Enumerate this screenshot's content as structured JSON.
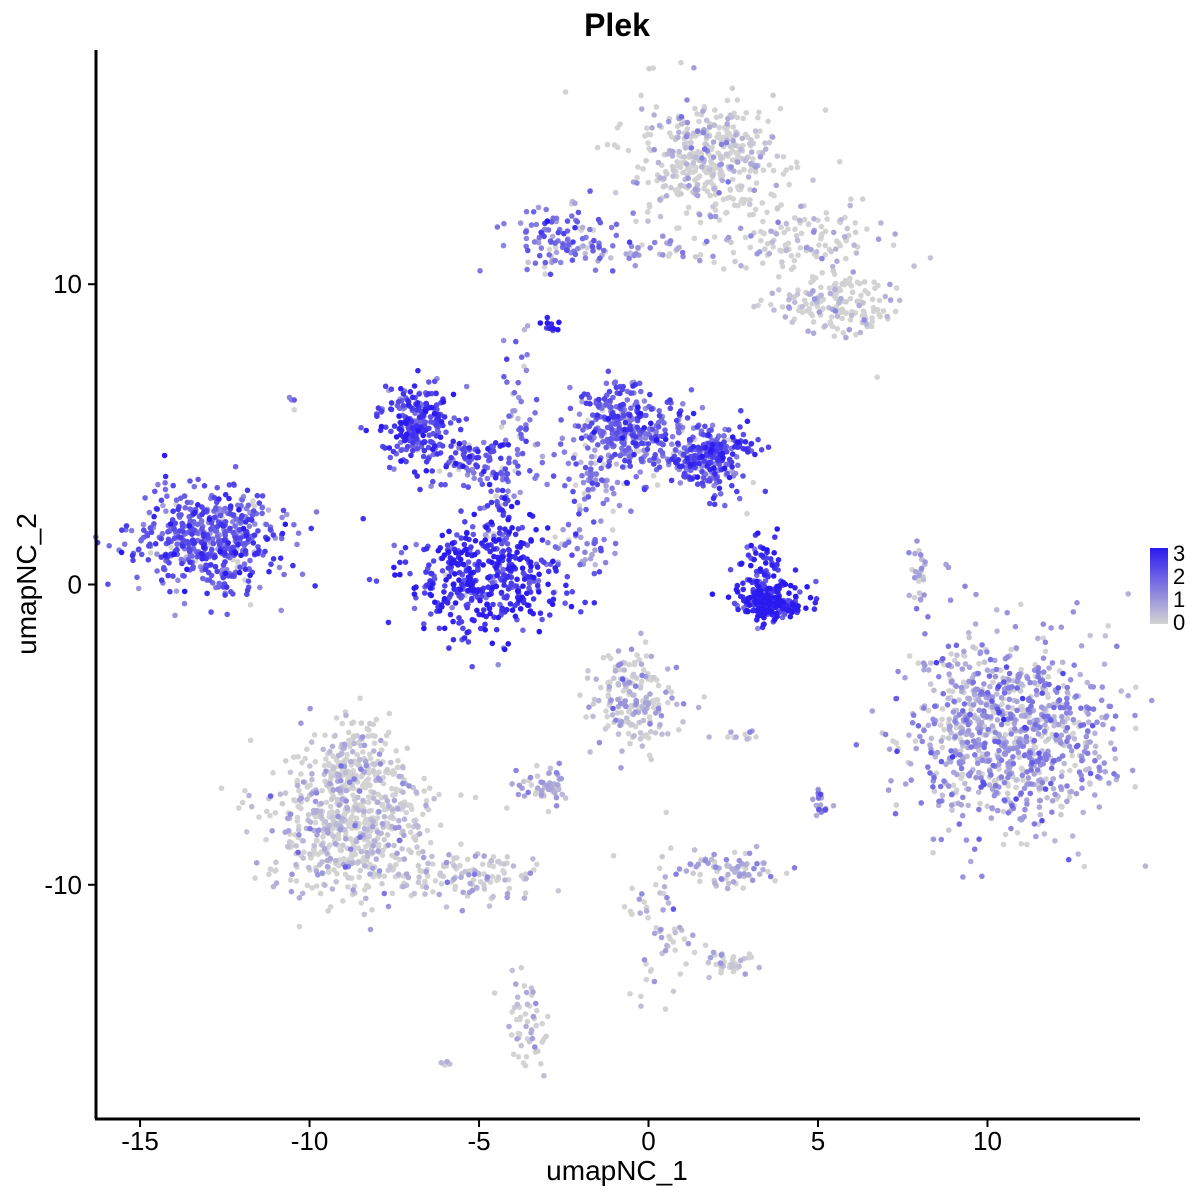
{
  "chart_data": {
    "type": "scatter",
    "title": "Plek",
    "xlabel": "umapNC_1",
    "ylabel": "umapNC_2",
    "xlim": [
      -16.3,
      14.5
    ],
    "ylim": [
      -17.8,
      17.8
    ],
    "x_ticks": [
      -15,
      -10,
      -5,
      0,
      5,
      10
    ],
    "y_ticks": [
      10,
      0,
      -10
    ],
    "x_tick_labels": [
      "-15",
      "-10",
      "-5",
      "0",
      "5",
      "10"
    ],
    "y_tick_labels": [
      "10",
      "0",
      "-10"
    ],
    "color_scale": {
      "low": "#d3d3d3",
      "high": "#2b1af0",
      "min": 0,
      "max": 3.3,
      "legend_values": [
        0,
        1,
        2,
        3
      ],
      "legend_labels": [
        "0",
        "1",
        "2",
        "3"
      ],
      "legend_position": "right"
    },
    "clusters": [
      {
        "cx": 1.8,
        "cy": 14.2,
        "sx": 1.1,
        "sy": 1.0,
        "n": 420,
        "expr": 0.1
      },
      {
        "cx": 4.6,
        "cy": 11.5,
        "sx": 1.2,
        "sy": 0.6,
        "n": 130,
        "expr": 0.05
      },
      {
        "cx": 5.6,
        "cy": 9.4,
        "sx": 0.9,
        "sy": 0.5,
        "n": 160,
        "expr": 0.05
      },
      {
        "cx": -2.4,
        "cy": 11.5,
        "sx": 0.8,
        "sy": 0.5,
        "n": 120,
        "expr": 1.8
      },
      {
        "cx": 0.0,
        "cy": 11.1,
        "sx": 1.2,
        "sy": 0.2,
        "n": 40,
        "expr": 1.0
      },
      {
        "cx": -2.9,
        "cy": 8.6,
        "sx": 0.15,
        "sy": 0.1,
        "n": 12,
        "expr": 3.1
      },
      {
        "cx": -13.0,
        "cy": 1.4,
        "sx": 1.1,
        "sy": 0.8,
        "n": 520,
        "expr": 2.2
      },
      {
        "cx": -11.9,
        "cy": 2.3,
        "sx": 0.3,
        "sy": 0.4,
        "n": 30,
        "expr": 1.6
      },
      {
        "cx": -6.8,
        "cy": 5.4,
        "sx": 0.6,
        "sy": 0.6,
        "n": 240,
        "expr": 2.5
      },
      {
        "cx": -5.2,
        "cy": 4.0,
        "sx": 0.7,
        "sy": 0.4,
        "n": 110,
        "expr": 2.2
      },
      {
        "cx": -4.8,
        "cy": 0.1,
        "sx": 1.1,
        "sy": 0.9,
        "n": 420,
        "expr": 2.8
      },
      {
        "cx": -4.4,
        "cy": 2.0,
        "sx": 0.3,
        "sy": 0.8,
        "n": 60,
        "expr": 2.3
      },
      {
        "cx": -3.8,
        "cy": 5.5,
        "sx": 0.3,
        "sy": 1.5,
        "n": 50,
        "expr": 1.6
      },
      {
        "cx": -0.8,
        "cy": 5.6,
        "sx": 0.6,
        "sy": 0.6,
        "n": 200,
        "expr": 2.1
      },
      {
        "cx": 0.4,
        "cy": 4.5,
        "sx": 1.2,
        "sy": 0.6,
        "n": 220,
        "expr": 1.9
      },
      {
        "cx": 2.0,
        "cy": 4.3,
        "sx": 0.6,
        "sy": 0.6,
        "n": 200,
        "expr": 2.3
      },
      {
        "cx": -1.6,
        "cy": 3.3,
        "sx": 0.5,
        "sy": 0.9,
        "n": 70,
        "expr": 1.6
      },
      {
        "cx": -2.0,
        "cy": 1.2,
        "sx": 0.6,
        "sy": 0.4,
        "n": 35,
        "expr": 1.5
      },
      {
        "cx": 3.6,
        "cy": -0.6,
        "sx": 0.5,
        "sy": 0.3,
        "n": 210,
        "expr": 3.0
      },
      {
        "cx": 3.3,
        "cy": 0.6,
        "sx": 0.3,
        "sy": 0.6,
        "n": 70,
        "expr": 2.7
      },
      {
        "cx": 8.0,
        "cy": 0.5,
        "sx": 0.15,
        "sy": 0.6,
        "n": 25,
        "expr": 0.5
      },
      {
        "cx": 10.6,
        "cy": -4.8,
        "sx": 1.5,
        "sy": 1.6,
        "n": 950,
        "expr": 1.0
      },
      {
        "cx": -0.5,
        "cy": -3.8,
        "sx": 0.7,
        "sy": 0.8,
        "n": 190,
        "expr": 0.4
      },
      {
        "cx": -8.8,
        "cy": -8.0,
        "sx": 1.2,
        "sy": 1.2,
        "n": 620,
        "expr": 0.1
      },
      {
        "cx": -8.7,
        "cy": -6.0,
        "sx": 0.6,
        "sy": 0.8,
        "n": 150,
        "expr": 0.1
      },
      {
        "cx": -5.3,
        "cy": -9.7,
        "sx": 1.0,
        "sy": 0.4,
        "n": 110,
        "expr": 0.25
      },
      {
        "cx": -3.2,
        "cy": -6.8,
        "sx": 0.4,
        "sy": 0.3,
        "n": 55,
        "expr": 0.7
      },
      {
        "cx": 2.5,
        "cy": -9.5,
        "sx": 0.7,
        "sy": 0.3,
        "n": 75,
        "expr": 0.6
      },
      {
        "cx": 0.4,
        "cy": -11.5,
        "sx": 0.6,
        "sy": 1.3,
        "n": 60,
        "expr": 0.3
      },
      {
        "cx": 2.3,
        "cy": -12.6,
        "sx": 0.4,
        "sy": 0.2,
        "n": 35,
        "expr": 0.1
      },
      {
        "cx": -3.6,
        "cy": -14.6,
        "sx": 0.3,
        "sy": 0.7,
        "n": 55,
        "expr": 0.2
      },
      {
        "cx": 5.0,
        "cy": -7.3,
        "sx": 0.2,
        "sy": 0.2,
        "n": 18,
        "expr": 1.2
      },
      {
        "cx": 2.8,
        "cy": -5.0,
        "sx": 0.3,
        "sy": 0.1,
        "n": 10,
        "expr": 0.1
      },
      {
        "cx": -10.5,
        "cy": 6.0,
        "sx": 0.1,
        "sy": 0.1,
        "n": 4,
        "expr": 1.5
      },
      {
        "cx": 6.8,
        "cy": 7.0,
        "sx": 0.05,
        "sy": 0.05,
        "n": 1,
        "expr": 0.0
      },
      {
        "cx": -6.0,
        "cy": -16.0,
        "sx": 0.2,
        "sy": 0.1,
        "n": 6,
        "expr": 0.1
      }
    ]
  }
}
